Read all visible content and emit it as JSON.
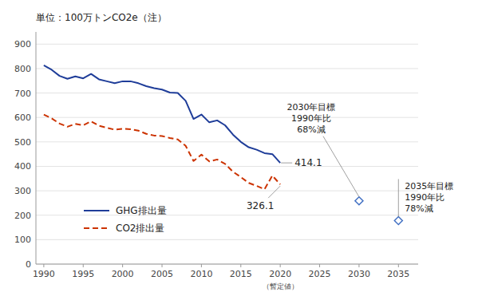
{
  "chart_data": {
    "type": "line",
    "title": "単位：100万トンCO2e（注）",
    "x": [
      1990,
      1991,
      1992,
      1993,
      1994,
      1995,
      1996,
      1997,
      1998,
      1999,
      2000,
      2001,
      2002,
      2003,
      2004,
      2005,
      2006,
      2007,
      2008,
      2009,
      2010,
      2011,
      2012,
      2013,
      2014,
      2015,
      2016,
      2017,
      2018,
      2019,
      2020
    ],
    "series": [
      {
        "name": "GHG排出量",
        "color": "#1f3d99",
        "line_style": "solid",
        "values": [
          813,
          795,
          770,
          758,
          768,
          760,
          778,
          756,
          748,
          740,
          748,
          748,
          740,
          728,
          720,
          714,
          702,
          700,
          668,
          594,
          612,
          580,
          588,
          568,
          530,
          500,
          478,
          468,
          454,
          450,
          414.1
        ]
      },
      {
        "name": "CO2排出量",
        "color": "#cc3300",
        "line_style": "dashed",
        "values": [
          612,
          596,
          575,
          562,
          574,
          568,
          584,
          566,
          558,
          550,
          554,
          552,
          546,
          533,
          526,
          524,
          516,
          510,
          484,
          422,
          448,
          420,
          428,
          410,
          378,
          356,
          332,
          320,
          306,
          362,
          326.1
        ]
      }
    ],
    "annotations": [
      {
        "text": [
          "2030年目標",
          "1990年比",
          "68%減"
        ],
        "x": 2030,
        "y": 258.9,
        "color": "#4472c4",
        "marker": "diamond"
      },
      {
        "text": [
          "2035年目標",
          "1990年比",
          "78%減"
        ],
        "x": 2035,
        "y": 178.0,
        "color": "#4472c4",
        "marker": "diamond"
      },
      {
        "text": "414.1",
        "x": 2020,
        "y": 414.1
      },
      {
        "text": "326.1",
        "x": 2020,
        "y": 326.1
      },
      {
        "text": "（暫定値）",
        "x": 2020
      }
    ],
    "xlim": [
      1989.0,
      2037.5
    ],
    "ylim": [
      0,
      950
    ],
    "xticks": [
      1990,
      1995,
      2000,
      2005,
      2010,
      2015,
      2020,
      2025,
      2030,
      2035
    ],
    "yticks": [
      0,
      100,
      200,
      300,
      400,
      500,
      600,
      700,
      800,
      900
    ],
    "grid": true,
    "legend": "lower left"
  }
}
